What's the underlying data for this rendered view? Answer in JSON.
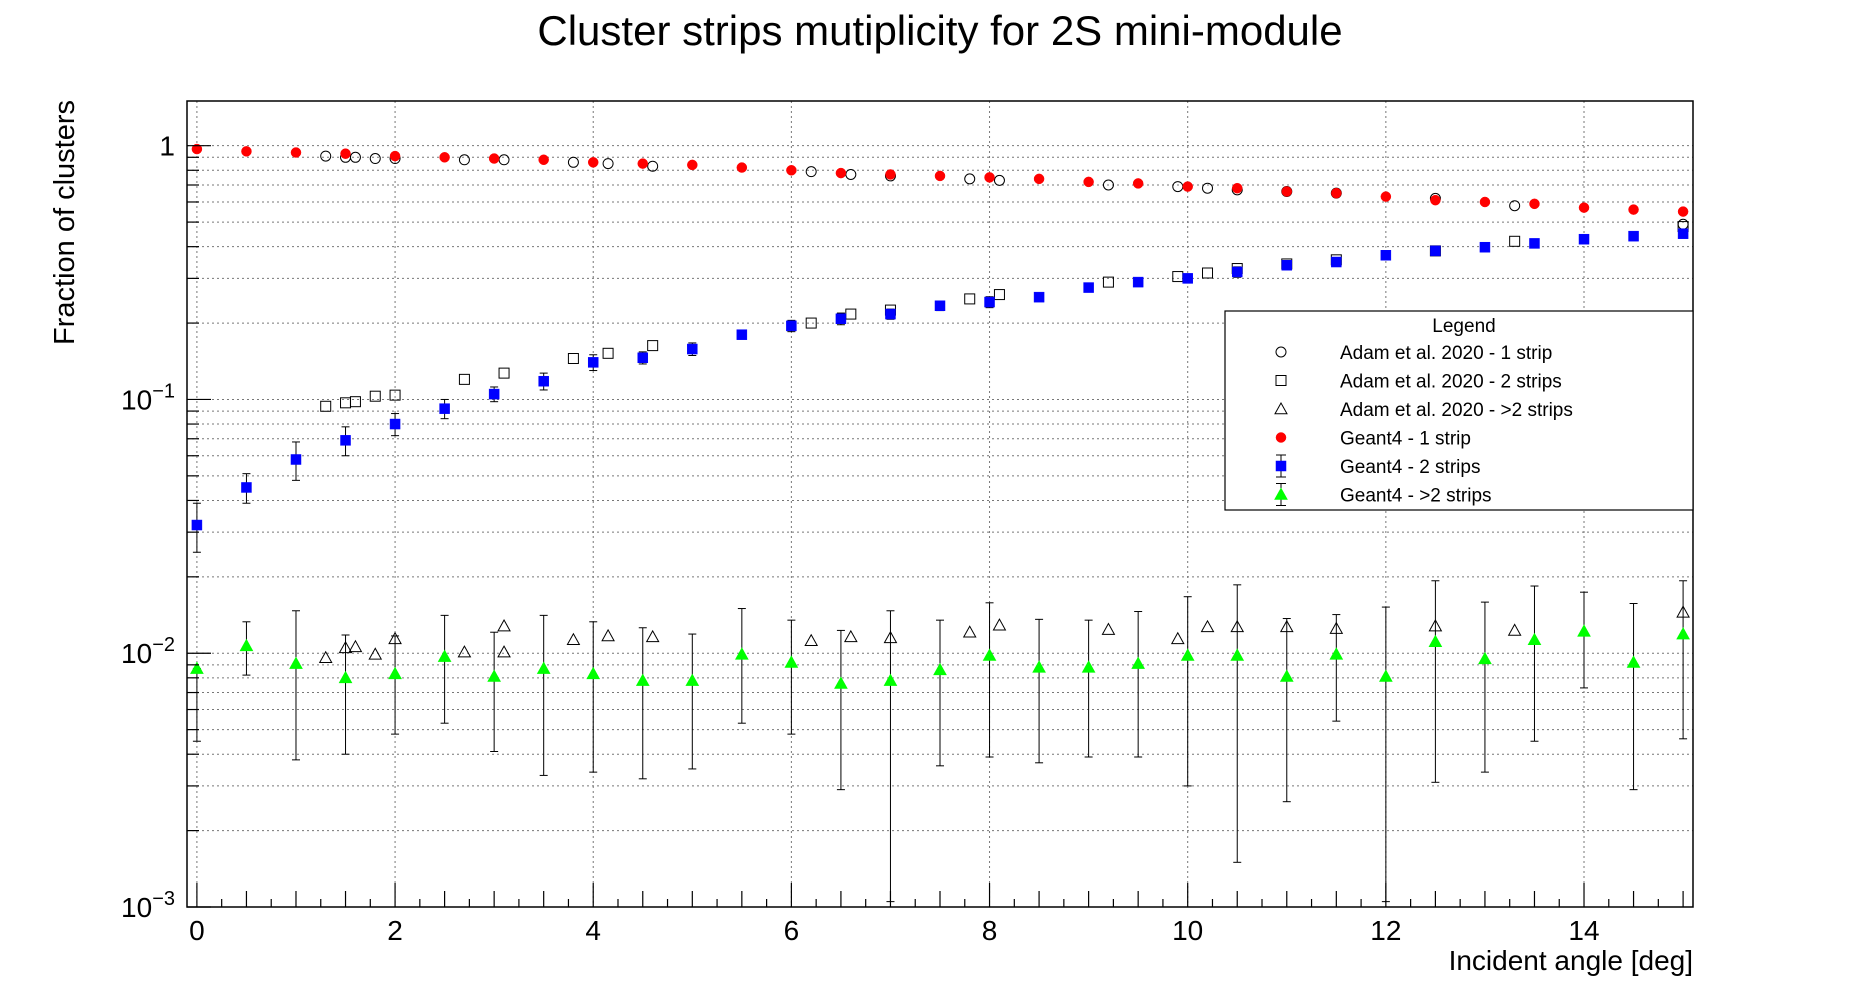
{
  "chart_data": {
    "type": "scatter",
    "title": "Cluster strips mutiplicity for 2S mini-module",
    "xlabel": "Incident angle [deg]",
    "ylabel": "Fraction of clusters",
    "xlim": [
      -0.1,
      15.1
    ],
    "ylim": [
      0.001,
      1.5
    ],
    "yscale": "log",
    "grid": true,
    "x_ticks": [
      0,
      2,
      4,
      6,
      8,
      10,
      12,
      14
    ],
    "y_ticks": [
      {
        "value": 1,
        "base": "1",
        "exp": ""
      },
      {
        "value": 0.1,
        "base": "10",
        "exp": "−1"
      },
      {
        "value": 0.01,
        "base": "10",
        "exp": "−2"
      },
      {
        "value": 0.001,
        "base": "10",
        "exp": "−3"
      }
    ],
    "legend": {
      "title": "Legend",
      "position": "right"
    },
    "series": [
      {
        "name": "Adam et al. 2020 - 1 strip",
        "marker": "open-circle",
        "color": "#000000",
        "x": [
          1.3,
          1.5,
          1.6,
          1.8,
          2.0,
          2.7,
          3.1,
          3.8,
          4.15,
          4.6,
          6.2,
          6.6,
          7.0,
          7.8,
          8.1,
          9.2,
          9.9,
          10.2,
          10.5,
          11.0,
          11.5,
          12.5,
          13.3,
          15.0
        ],
        "y": [
          0.91,
          0.9,
          0.9,
          0.89,
          0.89,
          0.88,
          0.88,
          0.86,
          0.85,
          0.83,
          0.79,
          0.77,
          0.76,
          0.74,
          0.73,
          0.7,
          0.69,
          0.68,
          0.67,
          0.66,
          0.65,
          0.62,
          0.58,
          0.49
        ]
      },
      {
        "name": "Adam et al. 2020 - 2 strips",
        "marker": "open-square",
        "color": "#000000",
        "x": [
          1.3,
          1.5,
          1.6,
          1.8,
          2.0,
          2.7,
          3.1,
          3.8,
          4.15,
          4.6,
          6.2,
          6.6,
          7.0,
          7.8,
          8.1,
          9.2,
          9.9,
          10.2,
          10.5,
          11.0,
          11.5,
          12.5,
          13.3,
          15.0
        ],
        "y": [
          0.094,
          0.097,
          0.098,
          0.103,
          0.104,
          0.12,
          0.127,
          0.145,
          0.152,
          0.163,
          0.2,
          0.217,
          0.225,
          0.249,
          0.259,
          0.29,
          0.305,
          0.315,
          0.328,
          0.342,
          0.355,
          0.385,
          0.42,
          0.48
        ]
      },
      {
        "name": "Adam et al. 2020 - >2 strips",
        "marker": "open-triangle",
        "color": "#000000",
        "x": [
          1.3,
          1.5,
          1.6,
          1.8,
          2.0,
          2.7,
          3.1,
          3.1,
          3.8,
          4.15,
          4.6,
          6.2,
          6.6,
          7.0,
          7.8,
          8.1,
          9.2,
          9.9,
          10.2,
          10.5,
          11.0,
          11.5,
          12.5,
          13.3,
          15.0
        ],
        "y": [
          0.0096,
          0.0105,
          0.0106,
          0.0099,
          0.0114,
          0.0101,
          0.0128,
          0.0101,
          0.0113,
          0.0117,
          0.0116,
          0.0112,
          0.0116,
          0.0115,
          0.0121,
          0.0129,
          0.0124,
          0.0114,
          0.0127,
          0.0127,
          0.0127,
          0.0125,
          0.0128,
          0.0123,
          0.0145
        ]
      },
      {
        "name": "Geant4 - 1 strip",
        "marker": "filled-circle",
        "color": "#ff0000",
        "x": [
          0.0,
          0.5,
          1.0,
          1.5,
          2.0,
          2.5,
          3.0,
          3.5,
          4.0,
          4.5,
          5.0,
          5.5,
          6.0,
          6.5,
          7.0,
          7.5,
          8.0,
          8.5,
          9.0,
          9.5,
          10.0,
          10.5,
          11.0,
          11.5,
          12.0,
          12.5,
          13.0,
          13.5,
          14.0,
          14.5,
          15.0
        ],
        "y": [
          0.97,
          0.95,
          0.94,
          0.93,
          0.91,
          0.9,
          0.89,
          0.88,
          0.86,
          0.85,
          0.84,
          0.82,
          0.8,
          0.78,
          0.77,
          0.76,
          0.75,
          0.74,
          0.72,
          0.71,
          0.69,
          0.68,
          0.66,
          0.65,
          0.63,
          0.61,
          0.6,
          0.59,
          0.57,
          0.56,
          0.55
        ]
      },
      {
        "name": "Geant4 - 2 strips",
        "marker": "filled-square",
        "color": "#0000ff",
        "x": [
          0.0,
          0.5,
          1.0,
          1.5,
          2.0,
          2.5,
          3.0,
          3.5,
          4.0,
          4.5,
          5.0,
          5.5,
          6.0,
          6.5,
          7.0,
          7.5,
          8.0,
          8.5,
          9.0,
          9.5,
          10.0,
          10.5,
          11.0,
          11.5,
          12.0,
          12.5,
          13.0,
          13.5,
          14.0,
          14.5,
          15.0
        ],
        "y": [
          0.032,
          0.045,
          0.058,
          0.069,
          0.08,
          0.092,
          0.105,
          0.118,
          0.14,
          0.146,
          0.158,
          0.18,
          0.195,
          0.208,
          0.217,
          0.234,
          0.242,
          0.253,
          0.276,
          0.29,
          0.3,
          0.318,
          0.338,
          0.348,
          0.37,
          0.385,
          0.398,
          0.412,
          0.428,
          0.44,
          0.45
        ],
        "yerr": [
          0.007,
          0.006,
          0.01,
          0.009,
          0.008,
          0.008,
          0.007,
          0.009,
          0.01,
          0.008,
          0.009,
          0.0,
          0.01,
          0.011,
          0.01,
          0.01,
          0.012,
          0.0,
          0.0,
          0.0,
          0.012,
          0.015,
          0.012,
          0.0,
          0.0,
          0.015,
          0.0,
          0.0,
          0.0,
          0.0,
          0.015
        ]
      },
      {
        "name": "Geant4 - >2 strips",
        "marker": "filled-triangle",
        "color": "#00ff00",
        "x": [
          0.0,
          0.5,
          1.0,
          1.5,
          2.0,
          2.5,
          3.0,
          3.5,
          4.0,
          4.5,
          5.0,
          5.5,
          6.0,
          6.5,
          7.0,
          7.5,
          8.0,
          8.5,
          9.0,
          9.5,
          10.0,
          10.5,
          11.0,
          11.5,
          12.0,
          12.5,
          13.0,
          13.5,
          14.0,
          14.5,
          15.0
        ],
        "y": [
          0.0087,
          0.0107,
          0.0091,
          0.008,
          0.0083,
          0.0097,
          0.0081,
          0.0087,
          0.0083,
          0.0078,
          0.0078,
          0.0099,
          0.0092,
          0.0076,
          0.0078,
          0.0086,
          0.0098,
          0.0088,
          0.0088,
          0.0091,
          0.0098,
          0.0098,
          0.0081,
          0.0099,
          0.0081,
          0.0111,
          0.0095,
          0.0113,
          0.0122,
          0.0092,
          0.0119
        ],
        "err_low": [
          0.0045,
          0.0082,
          0.0038,
          0.004,
          0.0048,
          0.0053,
          0.0041,
          0.0033,
          0.0034,
          0.0032,
          0.0035,
          0.0053,
          0.0048,
          0.0029,
          0.00105,
          0.0036,
          0.0039,
          0.0037,
          0.0039,
          0.0039,
          0.003,
          0.0015,
          0.0026,
          0.0054,
          0.00105,
          0.0031,
          0.0034,
          0.0045,
          0.0073,
          0.0029,
          0.0046
        ],
        "err_high": [
          0.0087,
          0.0133,
          0.0147,
          0.0118,
          0.0117,
          0.0141,
          0.0121,
          0.0141,
          0.0133,
          0.0126,
          0.0119,
          0.015,
          0.0135,
          0.0123,
          0.0147,
          0.0135,
          0.0158,
          0.0136,
          0.0135,
          0.0146,
          0.0167,
          0.0186,
          0.0137,
          0.0142,
          0.0152,
          0.0193,
          0.0159,
          0.0184,
          0.0174,
          0.0157,
          0.0193
        ]
      }
    ]
  }
}
